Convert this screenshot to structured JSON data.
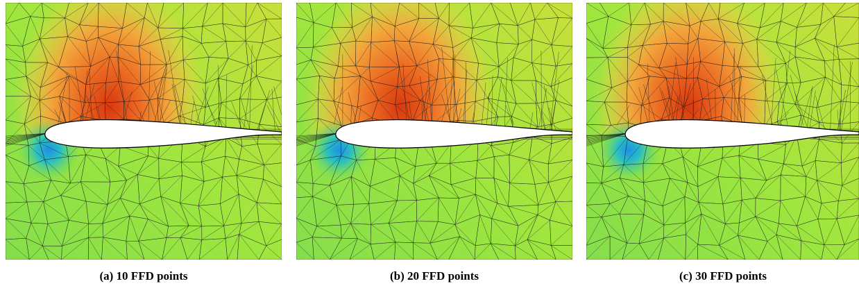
{
  "figure": {
    "panels": [
      {
        "caption": "(a) 10 FFD points"
      },
      {
        "caption": "(b) 20 FFD points"
      },
      {
        "caption": "(c) 30 FFD points"
      }
    ]
  }
}
